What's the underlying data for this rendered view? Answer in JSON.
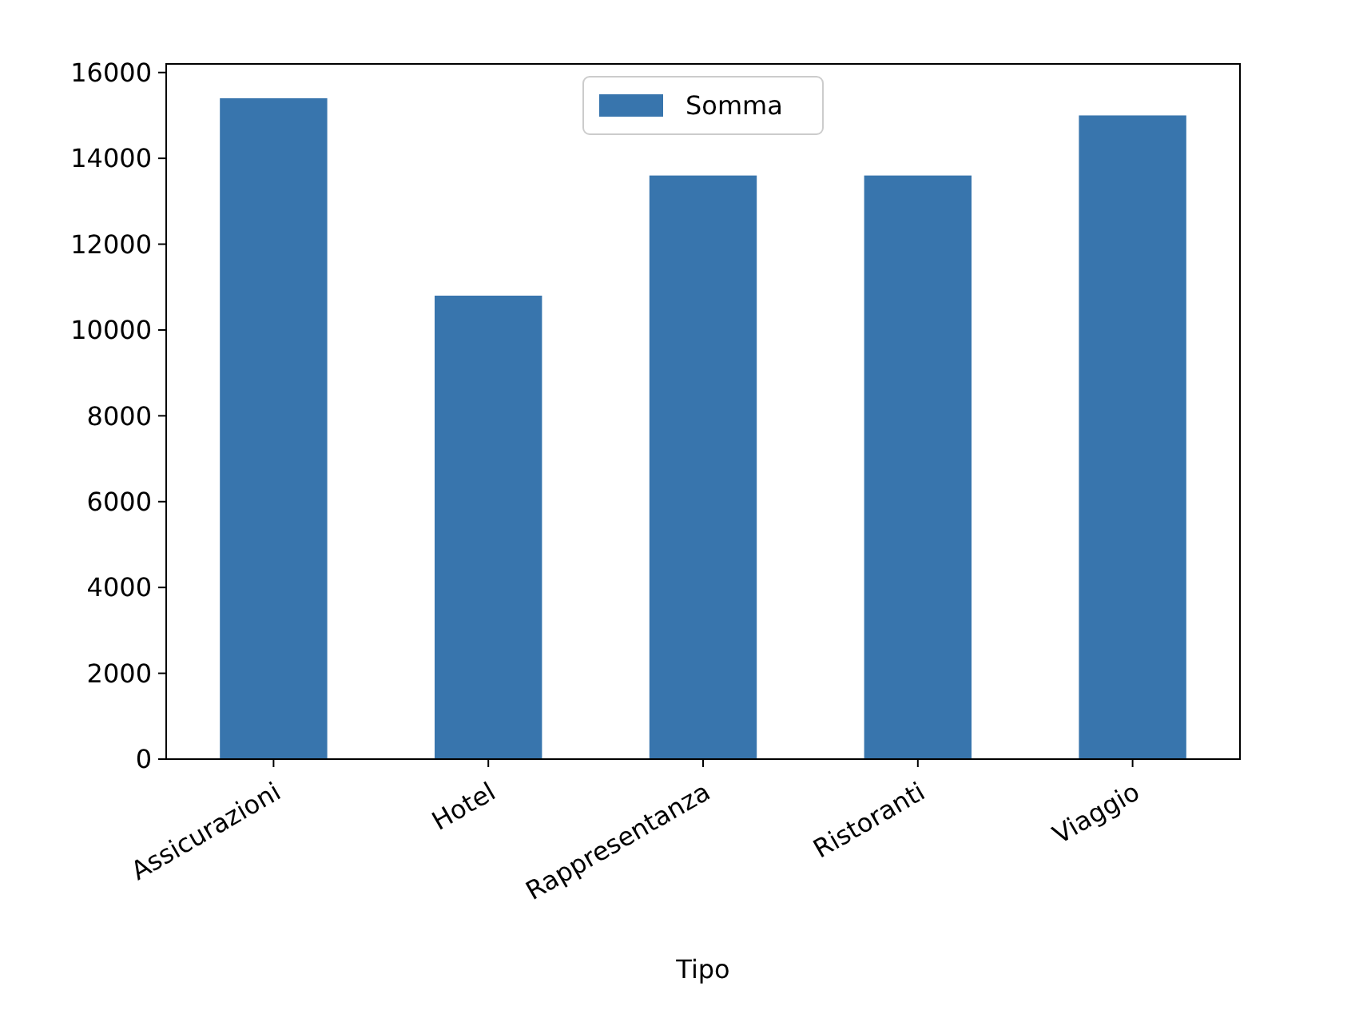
{
  "chart_data": {
    "type": "bar",
    "xlabel": "Tipo",
    "categories": [
      "Assicurazioni",
      "Hotel",
      "Rappresentanza",
      "Ristoranti",
      "Viaggio"
    ],
    "series": [
      {
        "name": "Somma",
        "color": "#3875ad",
        "values": [
          15400,
          10800,
          13600,
          13600,
          15000
        ]
      }
    ],
    "ylim": [
      0,
      16200
    ],
    "yticks": [
      0,
      2000,
      4000,
      6000,
      8000,
      10000,
      12000,
      14000,
      16000
    ],
    "grid": false,
    "legend": "top"
  }
}
